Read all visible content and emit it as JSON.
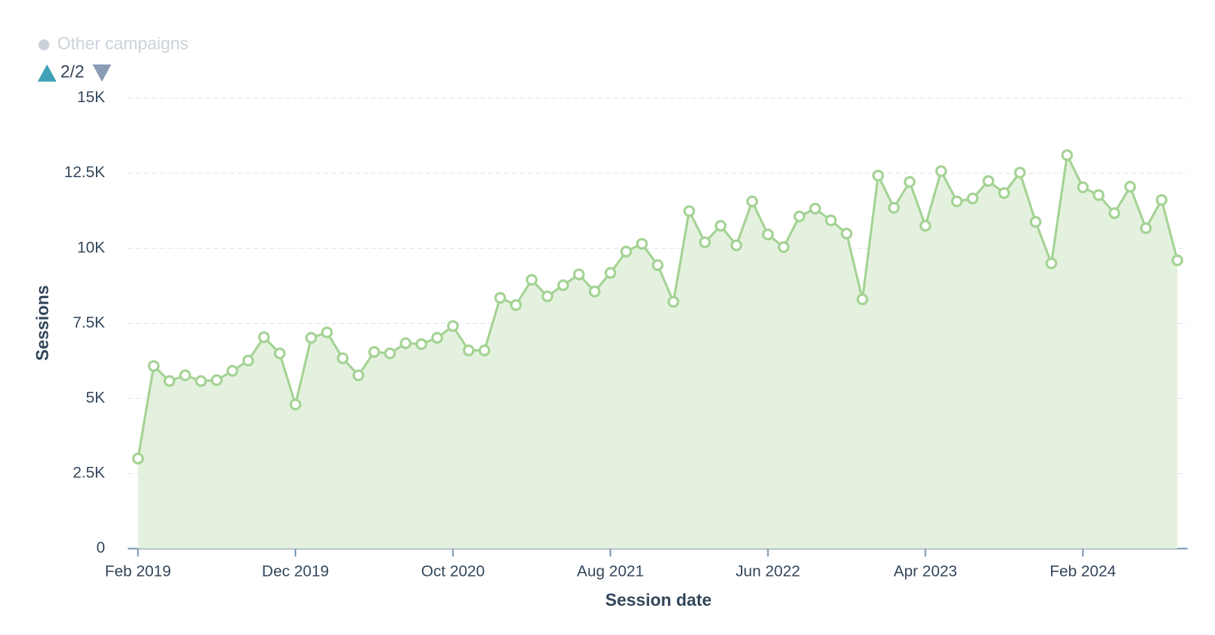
{
  "chart_data": {
    "type": "line",
    "area": true,
    "markers": true,
    "grid": true,
    "legend_position": "top-left",
    "legend": {
      "items": [
        {
          "name": "Other campaigns",
          "color": "#cbd2d9"
        }
      ],
      "page": "2/2"
    },
    "x_label": "Session date",
    "y_label": "Sessions",
    "categories": [
      "Feb 2019",
      null,
      null,
      null,
      null,
      null,
      null,
      null,
      null,
      null,
      "Dec 2019",
      null,
      null,
      null,
      null,
      null,
      null,
      null,
      null,
      null,
      "Oct 2020",
      null,
      null,
      null,
      null,
      null,
      null,
      null,
      null,
      null,
      "Aug 2021",
      null,
      null,
      null,
      null,
      null,
      null,
      null,
      null,
      null,
      "Jun 2022",
      null,
      null,
      null,
      null,
      null,
      null,
      null,
      null,
      null,
      "Apr 2023",
      null,
      null,
      null,
      null,
      null,
      null,
      null,
      null,
      null,
      "Feb 2024",
      null,
      null,
      null,
      null,
      null,
      null
    ],
    "series": [
      {
        "color": "#a4d394",
        "fill": "#e5f1df",
        "values": [
          3000,
          6080,
          5580,
          5770,
          5580,
          5610,
          5920,
          6260,
          7040,
          6500,
          4800,
          7020,
          7200,
          6340,
          5770,
          6550,
          6500,
          6840,
          6810,
          7020,
          7410,
          6600,
          6600,
          8350,
          8110,
          8950,
          8400,
          8770,
          9130,
          8560,
          9180,
          9890,
          10150,
          9440,
          8220,
          11240,
          10200,
          10750,
          10100,
          11560,
          10460,
          10040,
          11060,
          11320,
          10930,
          10490,
          8300,
          12420,
          11350,
          12210,
          10750,
          12570,
          11560,
          11660,
          12240,
          11840,
          12520,
          10880,
          9500,
          13100,
          12030,
          11770,
          11170,
          12050,
          10670,
          11610,
          9600
        ]
      }
    ],
    "ylim": [
      0,
      15000
    ],
    "yticks": [
      0,
      {
        "value": 2500,
        "label": "2.5K"
      },
      {
        "value": 5000,
        "label": "5K"
      },
      {
        "value": 7500,
        "label": "7.5K"
      },
      {
        "value": 10000,
        "label": "10K"
      },
      {
        "value": 12500,
        "label": "12.5K"
      },
      {
        "value": 15000,
        "label": "15K"
      }
    ]
  }
}
